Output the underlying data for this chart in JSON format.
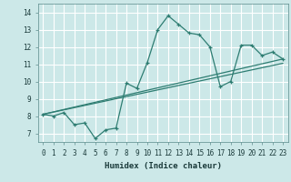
{
  "xlabel": "Humidex (Indice chaleur)",
  "ylabel": "",
  "bg_color": "#cce8e8",
  "grid_color": "#ffffff",
  "line_color": "#2e7d72",
  "xlim": [
    -0.5,
    23.5
  ],
  "ylim": [
    6.5,
    14.5
  ],
  "xticks": [
    0,
    1,
    2,
    3,
    4,
    5,
    6,
    7,
    8,
    9,
    10,
    11,
    12,
    13,
    14,
    15,
    16,
    17,
    18,
    19,
    20,
    21,
    22,
    23
  ],
  "yticks": [
    7,
    8,
    9,
    10,
    11,
    12,
    13,
    14
  ],
  "curve1_x": [
    0,
    1,
    2,
    3,
    4,
    5,
    6,
    7,
    8,
    9,
    10,
    11,
    12,
    13,
    14,
    15,
    16,
    17,
    18,
    19,
    20,
    21,
    22,
    23
  ],
  "curve1_y": [
    8.1,
    8.0,
    8.2,
    7.5,
    7.6,
    6.7,
    7.2,
    7.3,
    9.9,
    9.6,
    11.1,
    13.0,
    13.8,
    13.3,
    12.8,
    12.7,
    12.0,
    9.7,
    10.0,
    12.1,
    12.1,
    11.5,
    11.7,
    11.3
  ],
  "line1_x": [
    0,
    23
  ],
  "line1_y": [
    8.1,
    11.3
  ],
  "line2_x": [
    0,
    23
  ],
  "line2_y": [
    8.1,
    11.05
  ],
  "tick_fontsize": 5.5,
  "xlabel_fontsize": 6.5
}
